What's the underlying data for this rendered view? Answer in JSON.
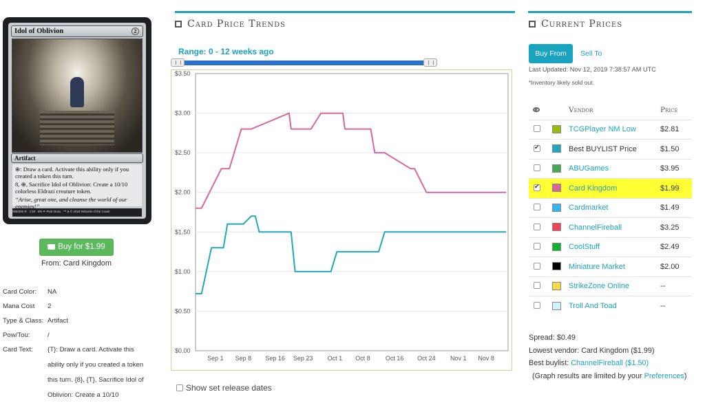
{
  "card": {
    "name": "Idol of Oblivion",
    "mana_cost": "2",
    "type_line": "Artifact",
    "ability_1": "⊕: Draw a card. Activate this ability only if you created a token this turn.",
    "ability_2": "8, ⊕, Sacrifice Idol of Oblivion: Create a 10/10 colorless Eldrazi creature token.",
    "flavor": "“Arise, great one, and cleanse the world of our enemies!”",
    "footer": "055/302 R · C18 · EN ✒ Piotr Dura · ™ & © 2018 Wizards of the Coast"
  },
  "buy": {
    "label": "Buy for $1.99",
    "from_label": "From:",
    "from_vendor": "Card Kingdom"
  },
  "details": [
    {
      "label": "Card Color:",
      "value": "NA"
    },
    {
      "label": "Mana Cost",
      "value": "2"
    },
    {
      "label": "Type & Class:",
      "value": "Artifact"
    },
    {
      "label": "Pow/Tou:",
      "value": "/"
    },
    {
      "label": "Card Text:",
      "value": "{T}: Draw a card. Activate this ability only if you created a token this turn. {8}, {T}, Sacrifice Idol of Oblivion: Create a 10/10"
    }
  ],
  "trends": {
    "title": "Card Price Trends",
    "range_label": "Range: 0 - 12 weeks ago",
    "show_release_label": "Show set release dates"
  },
  "chart_data": {
    "type": "line",
    "y_ticks": [
      "$0.00",
      "$0.50",
      "$1.00",
      "$1.50",
      "$2.00",
      "$2.50",
      "$3.00",
      "$3.50"
    ],
    "ylim": [
      0,
      3.5
    ],
    "x_ticks": [
      {
        "label": "Sep 1",
        "day": 1
      },
      {
        "label": "Sep 8",
        "day": 8
      },
      {
        "label": "Sep 16",
        "day": 16
      },
      {
        "label": "Sep 23",
        "day": 23
      },
      {
        "label": "Oct 1",
        "day": 31
      },
      {
        "label": "Oct 8",
        "day": 38
      },
      {
        "label": "Oct 16",
        "day": 46
      },
      {
        "label": "Oct 24",
        "day": 54
      },
      {
        "label": "Nov 1",
        "day": 62
      },
      {
        "label": "Nov 8",
        "day": 69
      }
    ],
    "xlim": [
      -4,
      74.5
    ],
    "grid": true,
    "series": [
      {
        "name": "Card Kingdom",
        "color": "#d6679a",
        "points": [
          [
            -4,
            1.8
          ],
          [
            -2.5,
            1.8
          ],
          [
            2.5,
            2.3
          ],
          [
            4.5,
            2.3
          ],
          [
            7.5,
            2.8
          ],
          [
            10,
            2.8
          ],
          [
            19.5,
            3.0
          ],
          [
            20,
            2.8
          ],
          [
            25,
            2.8
          ],
          [
            27.5,
            3.0
          ],
          [
            33,
            3.0
          ],
          [
            33.5,
            2.8
          ],
          [
            40,
            2.8
          ],
          [
            41,
            2.5
          ],
          [
            43.5,
            2.5
          ],
          [
            50,
            2.3
          ],
          [
            51,
            2.3
          ],
          [
            54,
            2.0
          ],
          [
            74,
            2.0
          ]
        ]
      },
      {
        "name": "Best BUYLIST Price",
        "color": "#20a6bd",
        "points": [
          [
            -4,
            0.72
          ],
          [
            -2.5,
            0.72
          ],
          [
            0,
            1.3
          ],
          [
            2.5,
            1.3
          ],
          [
            3,
            1.3
          ],
          [
            4,
            1.6
          ],
          [
            8,
            1.6
          ],
          [
            10,
            1.7
          ],
          [
            11,
            1.7
          ],
          [
            12,
            1.5
          ],
          [
            16,
            1.5
          ],
          [
            20,
            1.5
          ],
          [
            21,
            1.0
          ],
          [
            30,
            1.0
          ],
          [
            31.5,
            1.25
          ],
          [
            42,
            1.25
          ],
          [
            43.5,
            1.5
          ],
          [
            74,
            1.5
          ]
        ]
      }
    ]
  },
  "prices": {
    "title": "Current Prices",
    "tab_buy": "Buy From",
    "tab_sell": "Sell To",
    "last_updated": "Last Updated: Nov 12, 2019 7:38:57 AM UTC",
    "inventory_note": "*Inventory likely sold out.",
    "col_vendor": "Vendor",
    "col_price": "Price",
    "vendors": [
      {
        "name": "TCGPlayer NM Low",
        "price": "$2.81",
        "color": "#99bb11",
        "checked": false,
        "highlight": false,
        "dark": false
      },
      {
        "name": "Best BUYLIST Price",
        "price": "$1.50",
        "color": "#20a6bd",
        "checked": true,
        "highlight": false,
        "dark": true
      },
      {
        "name": "ABUGames",
        "price": "$3.95",
        "color": "#44a855",
        "checked": false,
        "highlight": false,
        "dark": false
      },
      {
        "name": "Card Kingdom",
        "price": "$1.99",
        "color": "#d6679a",
        "checked": true,
        "highlight": true,
        "dark": false
      },
      {
        "name": "Cardmarket",
        "price": "$1.49",
        "color": "#33b5ee",
        "checked": false,
        "highlight": false,
        "dark": false
      },
      {
        "name": "ChannelFireball",
        "price": "$3.25",
        "color": "#ee4455",
        "checked": false,
        "highlight": false,
        "dark": false
      },
      {
        "name": "CoolStuff",
        "price": "$2.49",
        "color": "#11b133",
        "checked": false,
        "highlight": false,
        "dark": false
      },
      {
        "name": "Miniature Market",
        "price": "$2.00",
        "color": "#000000",
        "checked": false,
        "highlight": false,
        "dark": false
      },
      {
        "name": "StrikeZone Online",
        "price": "--",
        "color": "#f2dd44",
        "checked": false,
        "highlight": false,
        "dark": false
      },
      {
        "name": "Troll And Toad",
        "price": "--",
        "color": "#ccf4f8",
        "checked": false,
        "highlight": false,
        "dark": false
      }
    ],
    "spread": "Spread: $0.49",
    "lowest_vendor": "Lowest vendor: Card Kingdom ($1.99)",
    "best_buylist_label": "Best buylist:",
    "best_buylist_vendor": "ChannelFireball ($1.50)",
    "graph_note_prefix": "(Graph results are limited by your",
    "graph_note_link": "Preferences",
    "graph_note_suffix": ")"
  }
}
